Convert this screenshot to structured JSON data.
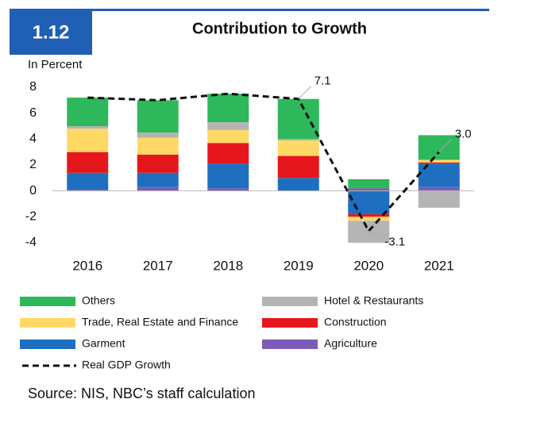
{
  "figure_number": "1.12",
  "chart_data": {
    "type": "stacked-bar-line",
    "title": "Contribution to Growth",
    "y_label": "In Percent",
    "categories": [
      "2016",
      "2017",
      "2018",
      "2019",
      "2020",
      "2021"
    ],
    "series": [
      {
        "name": "Others",
        "color": "#2eb85c",
        "values": [
          2.2,
          2.5,
          2.2,
          3.1,
          0.7,
          1.9
        ]
      },
      {
        "name": "Hotel & Restaurants",
        "color": "#b4b4b4",
        "values": [
          0.2,
          0.4,
          0.6,
          0.1,
          -1.7,
          -1.3
        ]
      },
      {
        "name": "Trade, Real Estate and Finance",
        "color": "#ffd966",
        "values": [
          1.8,
          1.3,
          1.0,
          1.2,
          -0.3,
          0.2
        ]
      },
      {
        "name": "Construction",
        "color": "#e5171c",
        "values": [
          1.6,
          1.4,
          1.6,
          1.7,
          -0.2,
          0.1
        ]
      },
      {
        "name": "Garment",
        "color": "#1f6fc1",
        "values": [
          1.3,
          1.1,
          1.9,
          1.0,
          -1.8,
          1.8
        ]
      },
      {
        "name": "Agriculture",
        "color": "#7b5cb6",
        "values": [
          0.1,
          0.3,
          0.2,
          0.0,
          0.2,
          0.3
        ]
      }
    ],
    "line": {
      "name": "Real GDP Growth",
      "color": "#111111",
      "values": [
        7.2,
        7.0,
        7.5,
        7.1,
        -3.1,
        3.0
      ],
      "value_labels": [
        null,
        null,
        null,
        "7.1",
        "-3.1",
        "3.0"
      ]
    },
    "ylim": [
      -4,
      8
    ],
    "yticks": [
      -4,
      -2,
      0,
      2,
      4,
      6,
      8
    ]
  },
  "source": "Source: NIS, NBC’s staff calculation"
}
